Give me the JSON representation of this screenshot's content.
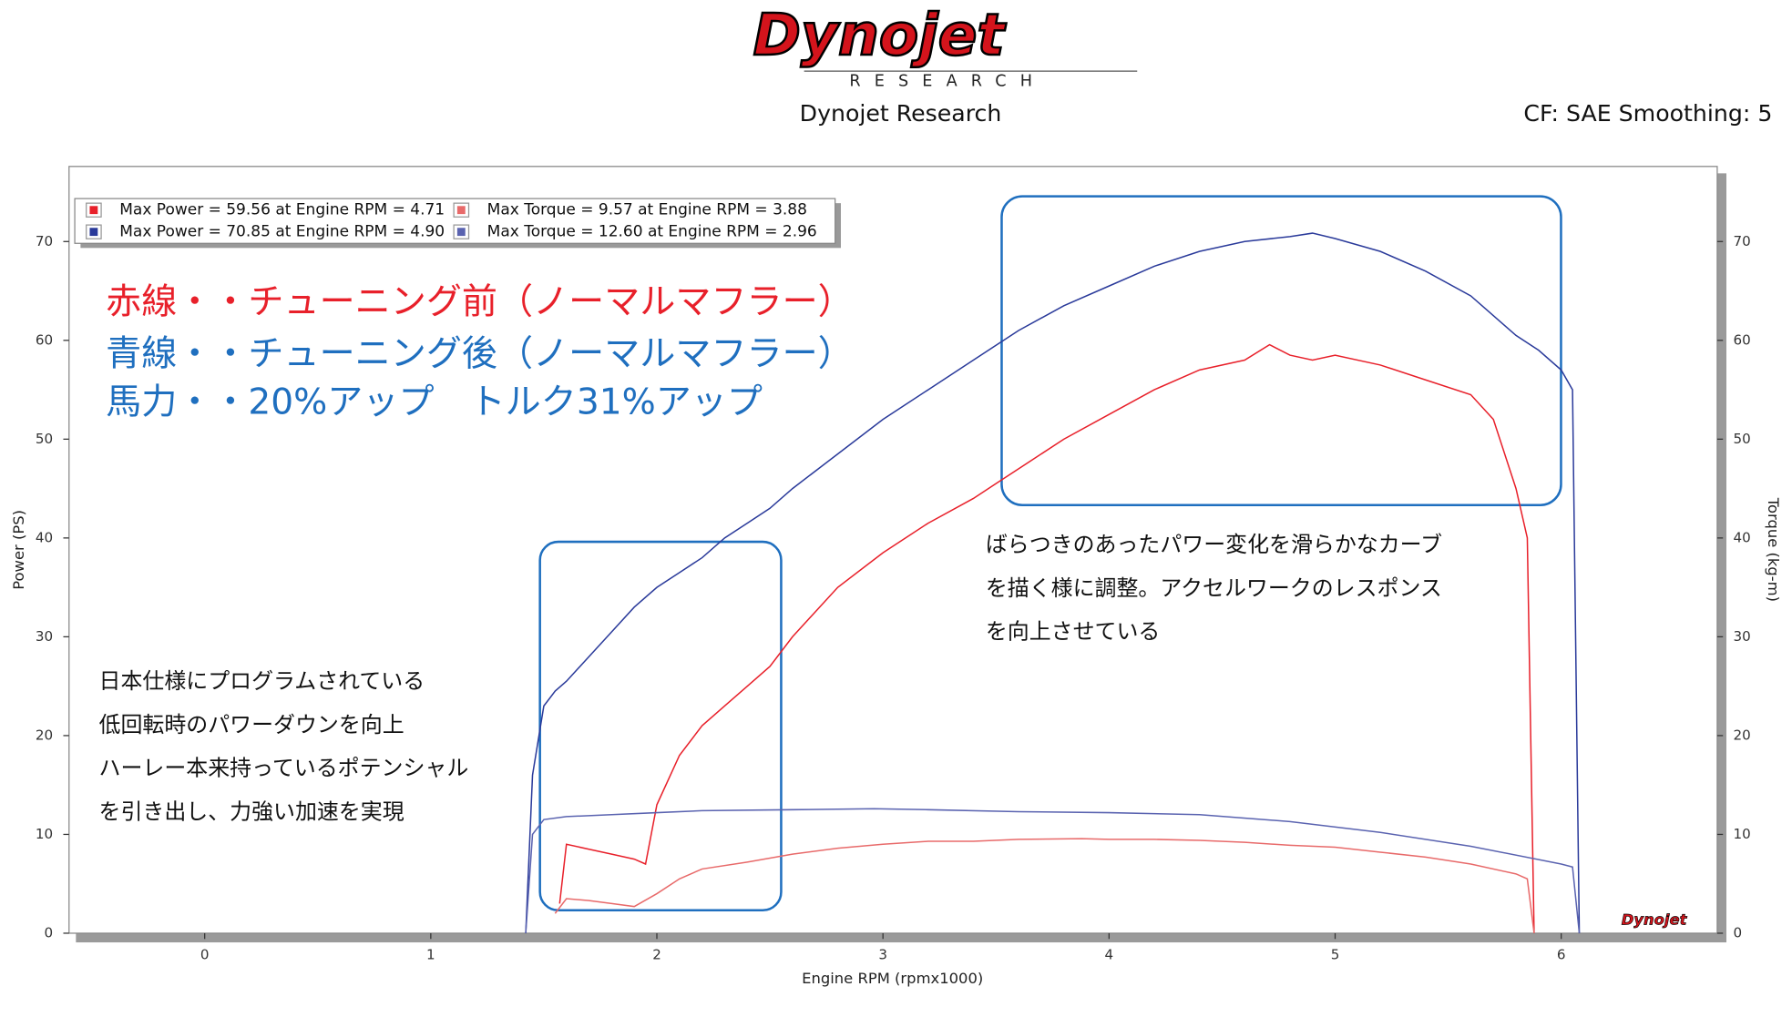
{
  "header": {
    "logo": "Dynojet",
    "logo_subtitle": "RESEARCH",
    "title": "Dynojet Research",
    "settings": "CF: SAE Smoothing: 5"
  },
  "chart_data": {
    "type": "line",
    "xlabel": "Engine RPM (rpmx1000)",
    "ylabel": "Power (PS)",
    "y2label": "Torque (kg-m)",
    "xlim": [
      -0.6,
      6.69
    ],
    "xticks": [
      0,
      1,
      2,
      3,
      4,
      5,
      6
    ],
    "ylim": [
      0,
      77.6
    ],
    "yticks": [
      0,
      10,
      20,
      30,
      40,
      50,
      60,
      70
    ],
    "y2lim": [
      0,
      77.6
    ],
    "y2ticks": [
      0,
      10,
      20,
      30,
      40,
      50,
      60,
      70
    ],
    "grid": false,
    "legend": "top-left",
    "series": [
      {
        "name": "Max Power = 59.56 at Engine RPM = 4.71",
        "color": "#e8202a",
        "x": [
          1.57,
          1.6,
          1.7,
          1.8,
          1.9,
          1.95,
          2.0,
          2.1,
          2.2,
          2.3,
          2.4,
          2.5,
          2.6,
          2.8,
          3.0,
          3.2,
          3.4,
          3.5,
          3.6,
          3.8,
          4.0,
          4.2,
          4.4,
          4.6,
          4.71,
          4.8,
          4.9,
          5.0,
          5.2,
          5.4,
          5.6,
          5.7,
          5.8,
          5.85,
          5.88
        ],
        "values": [
          3,
          9,
          8.5,
          8,
          7.5,
          7,
          13,
          18,
          21,
          23,
          25,
          27,
          30,
          35,
          38.5,
          41.5,
          44,
          45.5,
          47,
          50,
          52.5,
          55,
          57,
          58,
          59.56,
          58.5,
          58,
          58.5,
          57.5,
          56,
          54.5,
          52,
          45,
          40,
          0
        ]
      },
      {
        "name": "Max Power = 70.85 at Engine RPM = 4.90",
        "color": "#2a3a9a",
        "x": [
          1.42,
          1.45,
          1.5,
          1.55,
          1.6,
          1.7,
          1.8,
          1.9,
          2.0,
          2.1,
          2.2,
          2.3,
          2.4,
          2.5,
          2.6,
          2.8,
          3.0,
          3.2,
          3.4,
          3.5,
          3.6,
          3.8,
          4.0,
          4.2,
          4.4,
          4.6,
          4.8,
          4.9,
          5.0,
          5.2,
          5.4,
          5.6,
          5.8,
          5.9,
          6.0,
          6.05,
          6.08
        ],
        "values": [
          0,
          16,
          23,
          24.5,
          25.5,
          28,
          30.5,
          33,
          35,
          36.5,
          38,
          40,
          41.5,
          43,
          45,
          48.5,
          52,
          55,
          58,
          59.5,
          61,
          63.5,
          65.5,
          67.5,
          69,
          70,
          70.5,
          70.85,
          70.3,
          69,
          67,
          64.5,
          60.5,
          59,
          57,
          55,
          0
        ],
        "axis": "y"
      },
      {
        "name": "Max Torque = 9.57 at Engine RPM = 3.88",
        "color": "#e86a6a",
        "axis": "y2",
        "x": [
          1.55,
          1.6,
          1.7,
          1.8,
          1.9,
          2.0,
          2.1,
          2.2,
          2.4,
          2.6,
          2.8,
          3.0,
          3.2,
          3.4,
          3.6,
          3.88,
          4.0,
          4.2,
          4.4,
          4.6,
          4.8,
          5.0,
          5.2,
          5.4,
          5.6,
          5.8,
          5.85,
          5.88
        ],
        "values": [
          2,
          3.5,
          3.3,
          3,
          2.7,
          4,
          5.5,
          6.5,
          7.2,
          8,
          8.6,
          9,
          9.3,
          9.3,
          9.5,
          9.57,
          9.5,
          9.5,
          9.4,
          9.2,
          8.9,
          8.7,
          8.2,
          7.7,
          7,
          6,
          5.5,
          0
        ]
      },
      {
        "name": "Max Torque = 12.60 at Engine RPM = 2.96",
        "color": "#5a63b0",
        "axis": "y2",
        "x": [
          1.42,
          1.45,
          1.5,
          1.6,
          1.8,
          2.0,
          2.2,
          2.6,
          2.96,
          3.2,
          3.6,
          4.0,
          4.4,
          4.8,
          5.2,
          5.6,
          6.0,
          6.05,
          6.08
        ],
        "values": [
          0,
          10,
          11.5,
          11.8,
          12,
          12.2,
          12.4,
          12.5,
          12.6,
          12.5,
          12.3,
          12.2,
          12,
          11.3,
          10.2,
          8.8,
          7,
          6.7,
          0
        ]
      }
    ],
    "annotations": [
      "赤線・・チューニング前（ノーマルマフラー）",
      "青線・・チューニング後（ノーマルマフラー）",
      "馬力・・20%アップ　トルク31%アップ",
      "日本仕様にプログラムされている",
      "低回転時のパワーダウンを向上",
      "ハーレー本来持っているポテンシャル",
      "を引き出し、力強い加速を実現",
      "ばらつきのあったパワー変化を滑らかなカーブ",
      "を描く様に調整。アクセルワークのレスポンス",
      "を向上させている"
    ]
  }
}
